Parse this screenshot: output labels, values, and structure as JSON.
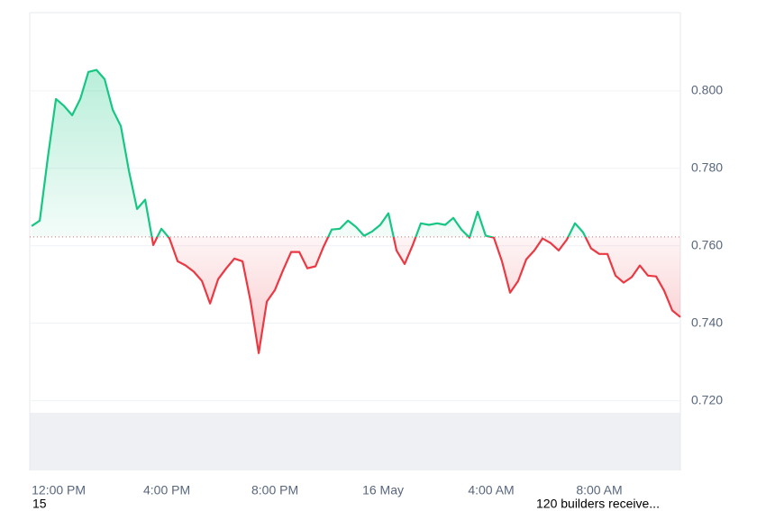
{
  "chart_data": {
    "type": "line",
    "x": [
      -1.0,
      -0.7,
      -0.4,
      -0.1,
      0.2,
      0.5,
      0.8,
      1.1,
      1.4,
      1.7,
      2.0,
      2.3,
      2.6,
      2.9,
      3.2,
      3.5,
      3.8,
      4.1,
      4.4,
      4.7,
      5.0,
      5.3,
      5.6,
      5.9,
      6.2,
      6.5,
      6.8,
      7.1,
      7.4,
      7.7,
      8.0,
      8.3,
      8.6,
      8.9,
      9.2,
      9.5,
      9.8,
      10.1,
      10.4,
      10.7,
      11.0,
      11.3,
      11.6,
      11.9,
      12.2,
      12.5,
      12.8,
      13.1,
      13.4,
      13.7,
      14.0,
      14.3,
      14.6,
      14.9,
      15.2,
      15.5,
      15.8,
      16.1,
      16.4,
      16.7,
      17.0,
      17.3,
      17.6,
      17.9,
      18.2,
      18.5,
      18.8,
      19.1,
      19.4,
      19.7,
      20.0,
      20.3,
      20.6,
      20.9,
      21.2,
      21.5,
      21.8,
      22.1,
      22.4,
      22.7,
      23.0
    ],
    "values": [
      0.7651,
      0.7665,
      0.7828,
      0.7979,
      0.7961,
      0.7937,
      0.7979,
      0.8049,
      0.8054,
      0.803,
      0.7951,
      0.7909,
      0.7793,
      0.7695,
      0.7719,
      0.7602,
      0.7644,
      0.7619,
      0.756,
      0.7549,
      0.7533,
      0.7509,
      0.7451,
      0.7514,
      0.7542,
      0.7567,
      0.756,
      0.7456,
      0.7323,
      0.7456,
      0.7486,
      0.7537,
      0.7584,
      0.7584,
      0.7542,
      0.7547,
      0.7598,
      0.7642,
      0.7644,
      0.7665,
      0.7649,
      0.7626,
      0.7637,
      0.7654,
      0.7684,
      0.7588,
      0.7553,
      0.7602,
      0.7658,
      0.7654,
      0.7658,
      0.7654,
      0.7672,
      0.7642,
      0.7621,
      0.7688,
      0.7626,
      0.7621,
      0.756,
      0.7479,
      0.7509,
      0.7565,
      0.7588,
      0.7619,
      0.7607,
      0.7588,
      0.7616,
      0.7658,
      0.7635,
      0.7593,
      0.7579,
      0.7579,
      0.7523,
      0.7505,
      0.7519,
      0.7549,
      0.7523,
      0.7521,
      0.7484,
      0.7433,
      0.7416
    ],
    "baseline": 0.7623,
    "up_color": "#16c784",
    "down_color": "#ea3943",
    "xlim": [
      -1.07,
      23
    ],
    "xticks": [
      {
        "value": 0,
        "label": "12:00 PM"
      },
      {
        "value": 4,
        "label": "4:00 PM"
      },
      {
        "value": 8,
        "label": "8:00 PM"
      },
      {
        "value": 12,
        "label": "16 May"
      },
      {
        "value": 16,
        "label": "4:00 AM"
      },
      {
        "value": 20,
        "label": "8:00 AM"
      }
    ],
    "ylim": [
      0.702,
      0.8202
    ],
    "yticks": [
      {
        "value": 0.72,
        "label": "0.720"
      },
      {
        "value": 0.74,
        "label": "0.740"
      },
      {
        "value": 0.76,
        "label": "0.760"
      },
      {
        "value": 0.78,
        "label": "0.780"
      },
      {
        "value": 0.8,
        "label": "0.800"
      }
    ],
    "grid": true,
    "annotations": [
      "15",
      "120 builders receive..."
    ]
  }
}
